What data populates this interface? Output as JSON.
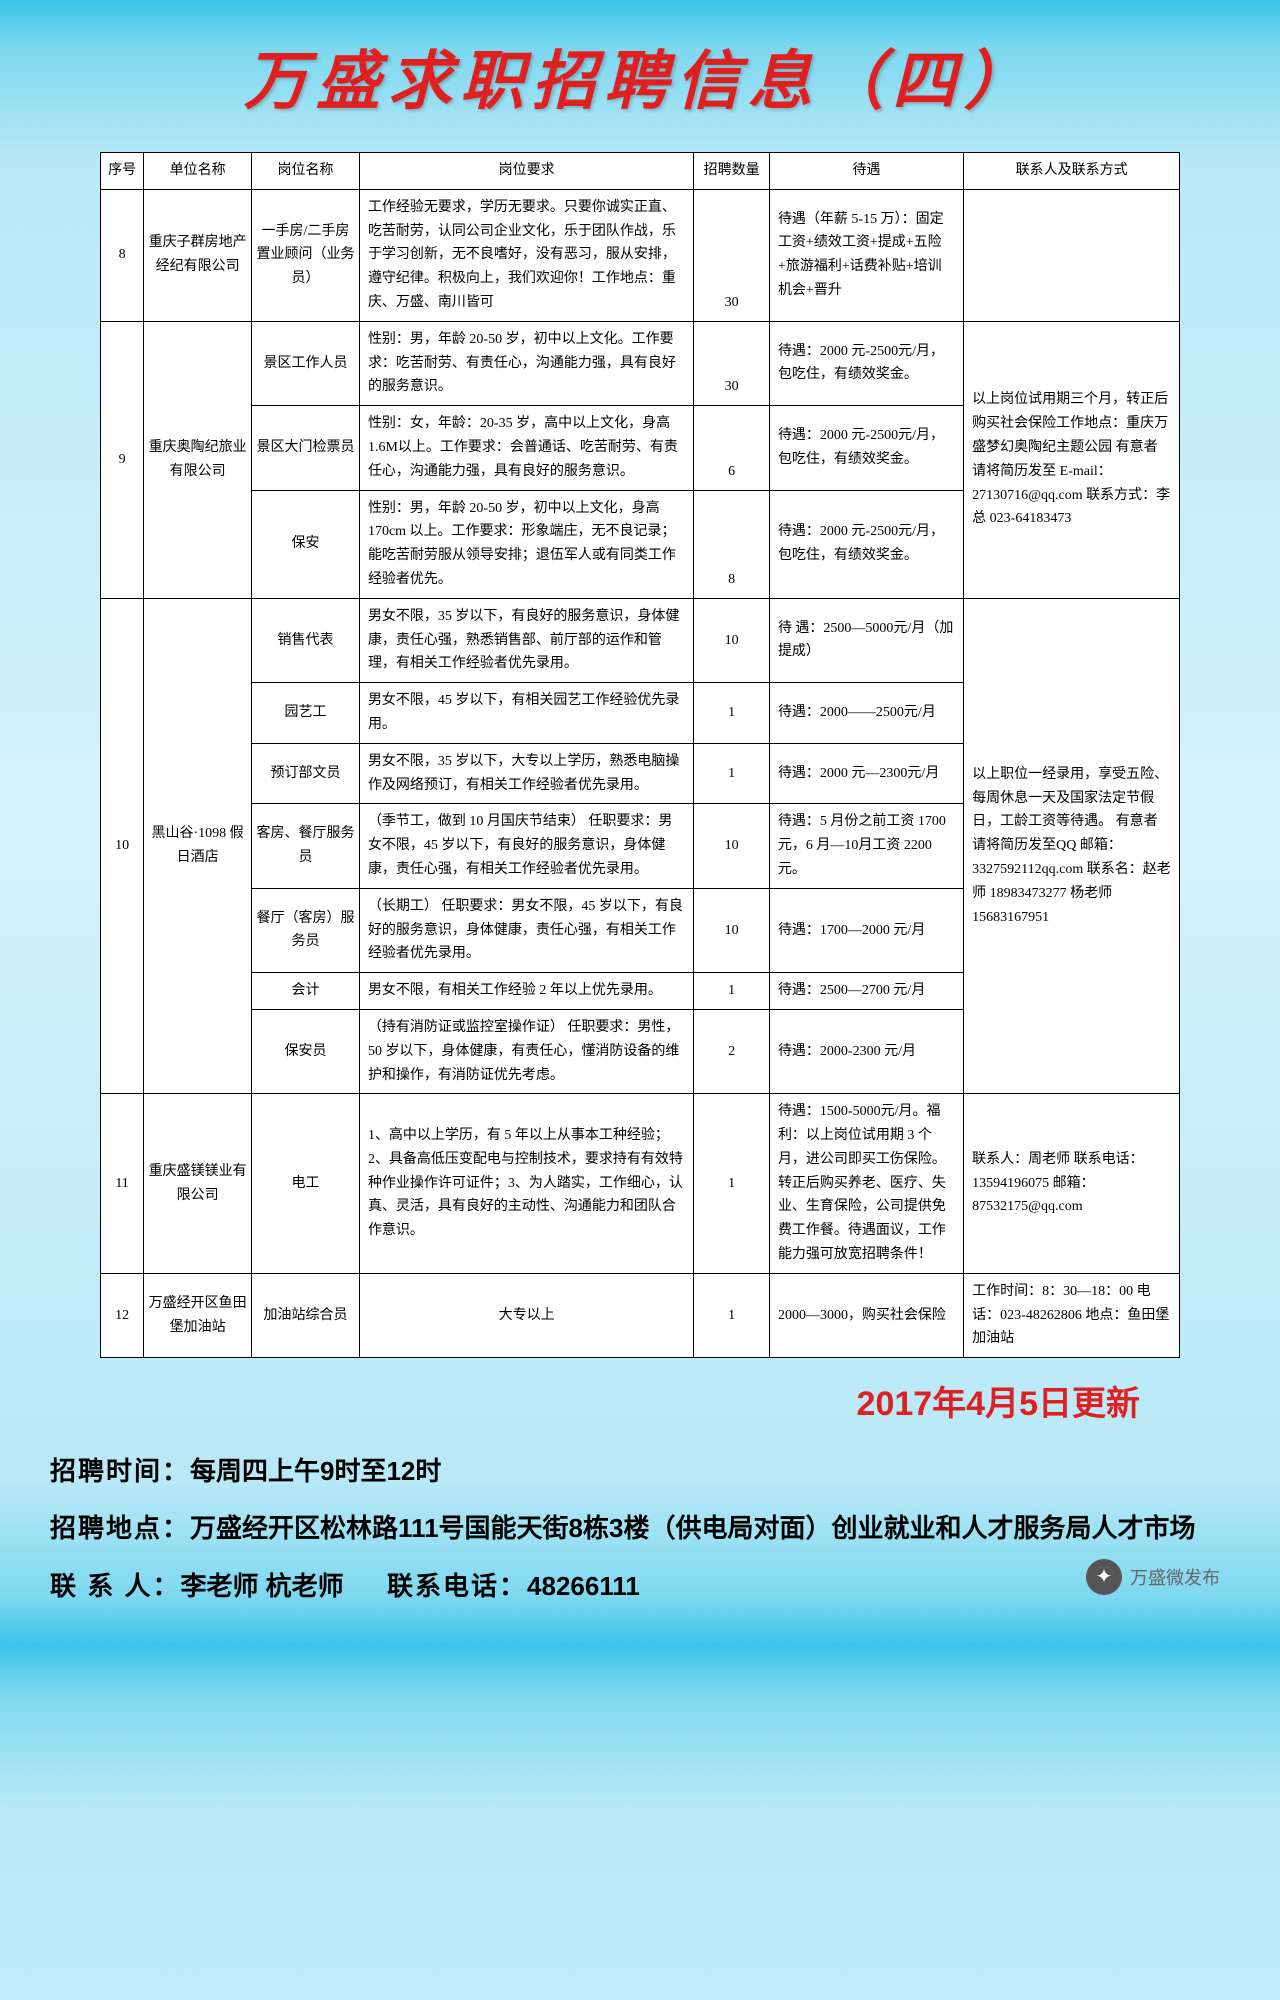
{
  "title": "万盛求职招聘信息（四）",
  "columns": [
    "序号",
    "单位名称",
    "岗位名称",
    "岗位要求",
    "招聘数量",
    "待遇",
    "联系人及联系方式"
  ],
  "rows": [
    {
      "seq": "8",
      "unit": "重庆子群房地产经纪有限公司",
      "position": "一手房/二手房 置业顾问（业务员）",
      "requirement": "工作经验无要求，学历无要求。只要你诚实正直、吃苦耐劳，认同公司企业文化，乐于团队作战，乐于学习创新，无不良嗜好，没有恶习，服从安排，遵守纪律。积极向上，我们欢迎你！工作地点：重庆、万盛、南川皆可",
      "number": "30",
      "pay": "待遇（年薪 5-15 万）：固定工资+绩效工资+提成+五险+旅游福利+话费补贴+培训机会+晋升",
      "contact": ""
    }
  ],
  "group9": {
    "seq": "9",
    "unit": "重庆奥陶纪旅业有限公司",
    "contact": "以上岗位试用期三个月，转正后购买社会保险工作地点：重庆万盛梦幻奥陶纪主题公园 有意者请将简历发至 E-mail：27130716@qq.com\n联系方式：李总\n023-64183473",
    "items": [
      {
        "position": "景区工作人员",
        "requirement": "性别：男，年龄 20-50 岁，初中以上文化。工作要求：吃苦耐劳、有责任心，沟通能力强，具有良好的服务意识。",
        "number": "30",
        "pay": "待遇：2000 元-2500元/月，包吃住，有绩效奖金。"
      },
      {
        "position": "景区大门检票员",
        "requirement": "性别：女，年龄：20-35 岁，高中以上文化，身高 1.6M以上。工作要求：会普通话、吃苦耐劳、有责任心，沟通能力强，具有良好的服务意识。",
        "number": "6",
        "pay": "待遇：2000 元-2500元/月，包吃住，有绩效奖金。"
      },
      {
        "position": "保安",
        "requirement": "性别：男，年龄 20-50 岁，初中以上文化，身高 170cm 以上。工作要求：形象端庄，无不良记录；能吃苦耐劳服从领导安排；退伍军人或有同类工作经验者优先。",
        "number": "8",
        "pay": "待遇：2000 元-2500元/月，包吃住，有绩效奖金。"
      }
    ]
  },
  "group10": {
    "seq": "10",
    "unit": "黑山谷·1098 假日酒店",
    "contact": "以上职位一经录用，享受五险、每周休息一天及国家法定节假日，工龄工资等待遇。\n有意者请将简历发至QQ 邮箱：\n3327592112qq.com\n联系名：赵老师\n18983473277\n杨老师\n15683167951",
    "items": [
      {
        "position": "销售代表",
        "requirement": "男女不限，35 岁以下，有良好的服务意识，身体健康，责任心强，熟悉销售部、前厅部的运作和管理，有相关工作经验者优先录用。",
        "number": "10",
        "pay": "待 遇：2500—5000元/月（加提成）"
      },
      {
        "position": "园艺工",
        "requirement": "男女不限，45 岁以下，有相关园艺工作经验优先录用。",
        "number": "1",
        "pay": "待遇：2000——2500元/月"
      },
      {
        "position": "预订部文员",
        "requirement": "男女不限，35 岁以下，大专以上学历，熟悉电脑操作及网络预订，有相关工作经验者优先录用。",
        "number": "1",
        "pay": "待遇：2000 元—2300元/月"
      },
      {
        "position": "客房、餐厅服务员",
        "requirement": "（季节工，做到 10 月国庆节结束）\n任职要求：男女不限，45 岁以下，有良好的服务意识，身体健康，责任心强，有相关工作经验者优先录用。",
        "number": "10",
        "pay": "待遇：5 月份之前工资 1700 元，6 月—10月工资 2200 元。"
      },
      {
        "position": "餐厅（客房）服务员",
        "requirement": "（长期工）\n任职要求：男女不限，45 岁以下，有良好的服务意识，身体健康，责任心强，有相关工作经验者优先录用。",
        "number": "10",
        "pay": "待遇：1700—2000 元/月"
      },
      {
        "position": "会计",
        "requirement": "男女不限，有相关工作经验 2 年以上优先录用。",
        "number": "1",
        "pay": "待遇：2500—2700 元/月"
      },
      {
        "position": "保安员",
        "requirement": "（持有消防证或监控室操作证）\n任职要求：男性，50 岁以下，身体健康，有责任心，懂消防设备的维护和操作，有消防证优先考虑。",
        "number": "2",
        "pay": "待遇：2000-2300 元/月"
      }
    ]
  },
  "row11": {
    "seq": "11",
    "unit": "重庆盛镁镁业有限公司",
    "position": "电工",
    "requirement": "1、高中以上学历，有 5 年以上从事本工种经验；2、具备高低压变配电与控制技术，要求持有有效特种作业操作许可证件；3、为人踏实，工作细心，认真、灵活，具有良好的主动性、沟通能力和团队合作意识。",
    "number": "1",
    "pay": "待遇：1500-5000元/月。福利：以上岗位试用期 3 个月，进公司即买工伤保险。转正后购买养老、医疗、失业、生育保险，公司提供免费工作餐。待遇面议，工作能力强可放宽招聘条件！",
    "contact": "联系人：周老师\n联系电话：13594196075\n邮箱：\n87532175@qq.com"
  },
  "row12": {
    "seq": "12",
    "unit": "万盛经开区鱼田堡加油站",
    "position": "加油站综合员",
    "requirement": "大专以上",
    "number": "1",
    "pay": "2000—3000，购买社会保险",
    "contact": "工作时间：8：30—18：00 电话：023-48262806\n地点：鱼田堡加油站"
  },
  "update_date": "2017年4月5日更新",
  "footer": {
    "time_label": "招聘时间：",
    "time_value": "每周四上午9时至12时",
    "addr_label": "招聘地点：",
    "addr_value": "万盛经开区松林路111号国能天街8栋3楼（供电局对面）创业就业和人才服务局人才市场",
    "contact_label": "联 系 人：",
    "contact_value": "李老师 杭老师",
    "phone_label": "联系电话：",
    "phone_value": "48266111"
  },
  "wechat": "万盛微发布"
}
